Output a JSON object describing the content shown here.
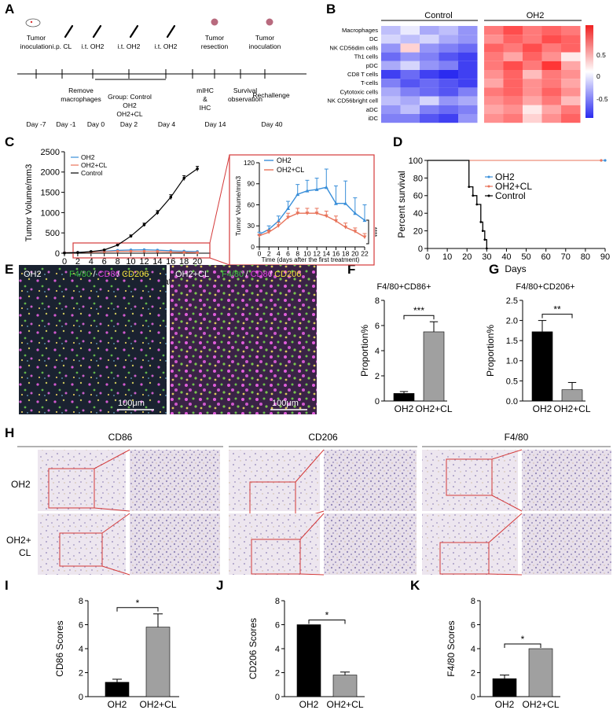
{
  "panels": {
    "A": "A",
    "B": "B",
    "C": "C",
    "D": "D",
    "E": "E",
    "F": "F",
    "G": "G",
    "H": "H",
    "I": "I",
    "J": "J",
    "K": "K"
  },
  "timeline": {
    "events_top": [
      {
        "lines": [
          "Tumor",
          "inoculation"
        ]
      },
      {
        "lines": [
          "i.p. CL"
        ]
      },
      {
        "lines": [
          "i.t. OH2"
        ]
      },
      {
        "lines": [
          "i.t. OH2"
        ]
      },
      {
        "lines": [
          "i.t. OH2"
        ]
      },
      {
        "lines": [
          "Tumor",
          "resection"
        ]
      },
      {
        "lines": [
          "Tumor",
          "inoculation"
        ]
      }
    ],
    "events_bottom": [
      {
        "lines": [
          "Remove",
          "macrophages"
        ]
      },
      {
        "lines": [
          "Group: Control",
          "OH2",
          "OH2+CL"
        ]
      },
      {
        "lines": [
          "mIHC",
          "&",
          "IHC"
        ]
      },
      {
        "lines": [
          "Survival",
          "observation"
        ]
      },
      {
        "lines": [
          "Rechallenge"
        ]
      }
    ],
    "days": [
      "Day -7",
      "Day -1",
      "Day 0",
      "Day 2",
      "Day 4",
      "Day 14",
      "Day 40"
    ]
  },
  "heatmap": {
    "groups": [
      "Control",
      "OH2"
    ],
    "rows": [
      "Macrophages",
      "DC",
      "NK CD56dim cells",
      "Th1 cells",
      "pDC",
      "CD8 T cells",
      "T-cells",
      "Cytotoxic cells",
      "NK CD56bright cell",
      "aDC",
      "iDC"
    ],
    "colorbar_ticks": [
      "0.5",
      "0",
      "-0.5"
    ],
    "colors": {
      "low": "#2b2bf0",
      "mid": "#ffffff",
      "high": "#f02020"
    }
  },
  "chart_data": [
    {
      "id": "C-main",
      "type": "line",
      "xlabel_lines": [
        "Time",
        "(days after the first treatment)"
      ],
      "ylabel": "Tumor Volume/mm3",
      "xlim": [
        0,
        22
      ],
      "ylim": [
        0,
        2500
      ],
      "xticks": [
        "0",
        "2",
        "4",
        "6",
        "8",
        "10",
        "12",
        "14",
        "16",
        "18",
        "20"
      ],
      "yticks": [
        "0",
        "500",
        "1000",
        "1500",
        "2000",
        "2500"
      ],
      "legend": [
        "OH2",
        "OH2+CL",
        "Control"
      ],
      "series": [
        {
          "name": "OH2",
          "color": "#3a8fd9",
          "x": [
            0,
            2,
            4,
            6,
            8,
            10,
            12,
            14,
            16,
            18,
            20
          ],
          "y": [
            15,
            22,
            35,
            50,
            70,
            80,
            85,
            75,
            60,
            50,
            40
          ]
        },
        {
          "name": "OH2+CL",
          "color": "#e8735a",
          "x": [
            0,
            2,
            4,
            6,
            8,
            10,
            12,
            14,
            16,
            18,
            20
          ],
          "y": [
            12,
            18,
            28,
            38,
            45,
            48,
            47,
            42,
            30,
            22,
            15
          ]
        },
        {
          "name": "Control",
          "color": "#000000",
          "x": [
            0,
            2,
            4,
            6,
            8,
            10,
            12,
            14,
            16,
            18,
            20
          ],
          "y": [
            5,
            15,
            40,
            80,
            200,
            420,
            700,
            1000,
            1380,
            1850,
            2080
          ],
          "err": [
            2,
            4,
            8,
            12,
            20,
            30,
            40,
            50,
            60,
            60,
            60
          ]
        }
      ]
    },
    {
      "id": "C-inset",
      "type": "line",
      "xlabel": "Time  (days after the first treatment)",
      "ylabel": "Tumor Volume/mm3",
      "xlim": [
        0,
        22
      ],
      "ylim": [
        0,
        120
      ],
      "xticks": [
        "0",
        "2",
        "4",
        "6",
        "8",
        "10",
        "12",
        "14",
        "16",
        "18",
        "20",
        "22"
      ],
      "yticks": [
        "0",
        "30",
        "60",
        "90",
        "120"
      ],
      "legend": [
        "OH2",
        "OH2+CL"
      ],
      "significance": "****",
      "series": [
        {
          "name": "OH2",
          "color": "#3a8fd9",
          "x": [
            0,
            2,
            4,
            6,
            8,
            10,
            12,
            14,
            16,
            18,
            20,
            22
          ],
          "y": [
            18,
            25,
            37,
            55,
            75,
            80,
            82,
            85,
            62,
            62,
            48,
            38
          ],
          "err": [
            3,
            5,
            7,
            10,
            14,
            15,
            16,
            26,
            25,
            32,
            22,
            22
          ]
        },
        {
          "name": "OH2+CL",
          "color": "#e8735a",
          "x": [
            0,
            2,
            4,
            6,
            8,
            10,
            12,
            14,
            16,
            18,
            20,
            22
          ],
          "y": [
            16,
            21,
            30,
            42,
            48,
            48,
            48,
            44,
            37,
            28,
            22,
            14
          ],
          "err": [
            2,
            3,
            5,
            6,
            7,
            7,
            7,
            7,
            7,
            6,
            5,
            5
          ]
        }
      ]
    },
    {
      "id": "D",
      "type": "line",
      "xlabel": "Days",
      "ylabel": "Percent survival",
      "xlim": [
        0,
        90
      ],
      "ylim": [
        0,
        100
      ],
      "xticks": [
        "0",
        "10",
        "20",
        "30",
        "40",
        "50",
        "60",
        "70",
        "80",
        "90"
      ],
      "yticks": [
        "0",
        "20",
        "40",
        "60",
        "80",
        "100"
      ],
      "legend": [
        "OH2",
        "OH2+CL",
        "Control"
      ],
      "series": [
        {
          "name": "OH2",
          "color": "#3a8fd9",
          "x": [
            0,
            90
          ],
          "y": [
            100,
            100
          ]
        },
        {
          "name": "OH2+CL",
          "color": "#e8735a",
          "x": [
            0,
            88
          ],
          "y": [
            100,
            100
          ]
        },
        {
          "name": "Control",
          "color": "#000000",
          "x": [
            0,
            21,
            21,
            23,
            23,
            25,
            25,
            27,
            27,
            28,
            28,
            29,
            29,
            30,
            30
          ],
          "y": [
            100,
            100,
            70,
            70,
            60,
            60,
            50,
            50,
            30,
            30,
            20,
            20,
            10,
            10,
            0
          ]
        }
      ]
    },
    {
      "id": "F",
      "type": "bar",
      "title": "F4/80+CD86+",
      "ylabel": "Proportion%",
      "categories": [
        "OH2",
        "OH2+CL"
      ],
      "values": [
        0.6,
        5.5
      ],
      "err": [
        0.15,
        0.8
      ],
      "ylim": [
        0,
        8
      ],
      "yticks": [
        "0",
        "2",
        "4",
        "6",
        "8"
      ],
      "significance": "***",
      "colors": [
        "#000000",
        "#a0a0a0"
      ]
    },
    {
      "id": "G",
      "type": "bar",
      "title": "F4/80+CD206+",
      "ylabel": "Proportion%",
      "categories": [
        "OH2",
        "OH2+CL"
      ],
      "values": [
        1.72,
        0.28
      ],
      "err": [
        0.28,
        0.18
      ],
      "ylim": [
        0,
        2.5
      ],
      "yticks": [
        "0.0",
        "0.5",
        "1.0",
        "1.5",
        "2.0",
        "2.5"
      ],
      "significance": "**",
      "colors": [
        "#000000",
        "#a0a0a0"
      ]
    },
    {
      "id": "I",
      "type": "bar",
      "ylabel": "CD86 Scores",
      "categories": [
        "OH2",
        "OH2+CL"
      ],
      "values": [
        1.2,
        5.8
      ],
      "err": [
        0.25,
        1.1
      ],
      "ylim": [
        0,
        8
      ],
      "yticks": [
        "0",
        "2",
        "4",
        "6",
        "8"
      ],
      "significance": "*",
      "colors": [
        "#000000",
        "#a0a0a0"
      ]
    },
    {
      "id": "J",
      "type": "bar",
      "ylabel": "CD206 Scores",
      "categories": [
        "OH2",
        "OH2+CL"
      ],
      "values": [
        6.0,
        1.8
      ],
      "err": [
        0,
        0.25
      ],
      "ylim": [
        0,
        8
      ],
      "yticks": [
        "0",
        "2",
        "4",
        "6",
        "8"
      ],
      "significance": "*",
      "colors": [
        "#000000",
        "#a0a0a0"
      ]
    },
    {
      "id": "K",
      "type": "bar",
      "ylabel": "F4/80 Scores",
      "categories": [
        "OH2",
        "OH2+CL"
      ],
      "values": [
        1.5,
        4.0
      ],
      "err": [
        0.3,
        0
      ],
      "ylim": [
        0,
        8
      ],
      "yticks": [
        "0",
        "2",
        "4",
        "6",
        "8"
      ],
      "significance": "*",
      "colors": [
        "#000000",
        "#a0a0a0"
      ]
    }
  ],
  "mif": {
    "left_label": "OH2",
    "right_label": "OH2+CL",
    "markers": [
      {
        "text": "F4/80",
        "color": "#3ec43e"
      },
      {
        "text": "/",
        "color": "#ffffff"
      },
      {
        "text": "CD86",
        "color": "#e040e0"
      },
      {
        "text": "/",
        "color": "#ffffff"
      },
      {
        "text": "CD206",
        "color": "#f2e23a"
      }
    ],
    "scale": "100μm"
  },
  "ihc": {
    "columns": [
      "CD86",
      "CD206",
      "F4/80"
    ],
    "rows": [
      "OH2",
      "OH2+|CL"
    ]
  }
}
